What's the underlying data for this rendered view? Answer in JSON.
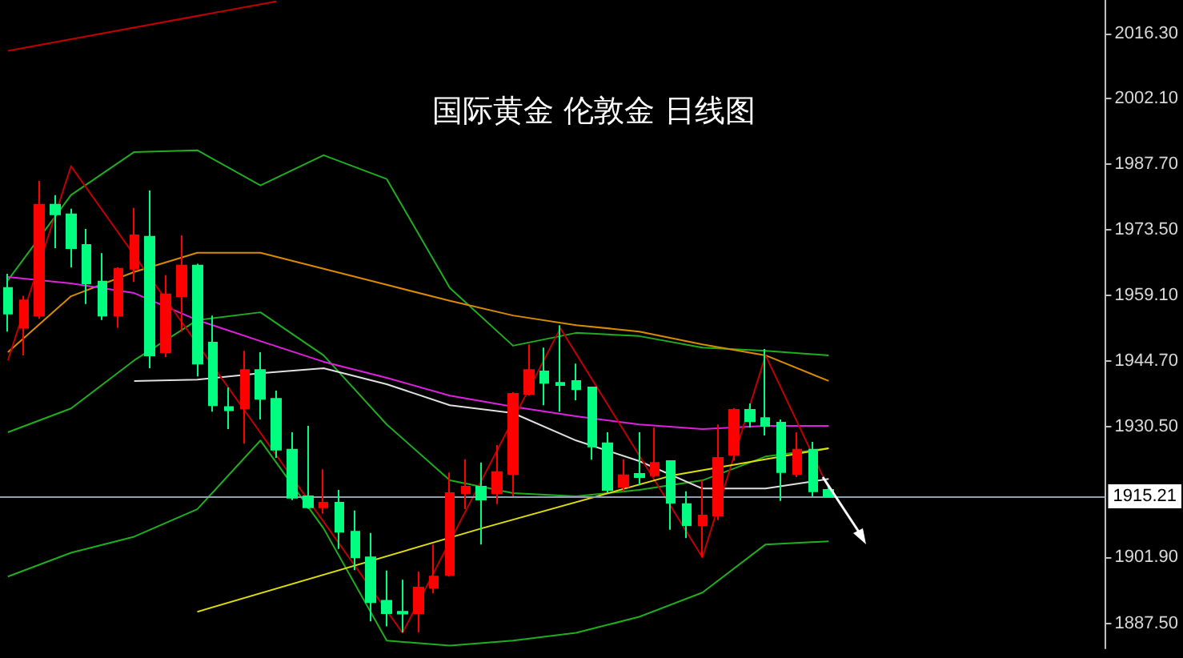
{
  "chart_data": {
    "type": "candlestick",
    "title": "国际黄金 伦敦金 日线图",
    "categories": [
      null,
      null,
      null,
      null,
      null,
      null,
      null,
      null,
      null,
      null,
      null,
      null,
      null,
      null,
      null,
      null,
      null,
      null,
      null,
      null,
      null,
      null,
      null,
      null,
      null,
      null,
      null,
      null,
      null,
      null,
      null,
      null,
      null,
      null,
      null,
      null,
      null,
      null,
      null,
      null,
      null,
      null,
      null,
      null,
      null,
      null,
      null,
      null,
      null,
      null,
      null,
      null,
      null,
      null,
      null,
      null,
      null,
      null,
      null,
      null,
      null,
      null,
      null,
      null,
      null,
      null,
      null,
      null,
      null,
      null
    ],
    "ohlc": [
      [
        1960.7,
        1963.8,
        1951.2,
        1955.1
      ],
      [
        1952.0,
        1959.0,
        1946.0,
        1958.0
      ],
      [
        1954.7,
        1984.1,
        1954.0,
        1978.9
      ],
      [
        1978.9,
        1981.0,
        1969.4,
        1976.8
      ],
      [
        1976.8,
        1978.0,
        1965.2,
        1969.4
      ],
      [
        1970.1,
        1973.6,
        1957.2,
        1961.7
      ],
      [
        1962.1,
        1968.3,
        1953.7,
        1954.7
      ],
      [
        1954.7,
        1965.2,
        1952.0,
        1964.9
      ],
      [
        1964.9,
        1978.2,
        1962.0,
        1972.2
      ],
      [
        1971.9,
        1982.0,
        1943.2,
        1946.0
      ],
      [
        1946.7,
        1963.5,
        1945.6,
        1959.3
      ],
      [
        1958.9,
        1972.2,
        1951.2,
        1965.6
      ],
      [
        1965.6,
        1966.0,
        1941.4,
        1944.2
      ],
      [
        1948.8,
        1954.7,
        1933.7,
        1935.1
      ],
      [
        1934.7,
        1939.0,
        1929.9,
        1934.0
      ],
      [
        1934.4,
        1947.0,
        1926.7,
        1942.8
      ],
      [
        1942.8,
        1946.7,
        1932.0,
        1936.5
      ],
      [
        1936.5,
        1938.3,
        1923.6,
        1925.4
      ],
      [
        1925.4,
        1929.2,
        1914.4,
        1914.9
      ],
      [
        1915.2,
        1930.6,
        1912.5,
        1912.8
      ],
      [
        1912.8,
        1921.1,
        1911.4,
        1913.8
      ],
      [
        1913.8,
        1916.6,
        1903.7,
        1907.5
      ],
      [
        1907.5,
        1912.1,
        1899.1,
        1901.9
      ],
      [
        1901.9,
        1907.2,
        1887.9,
        1892.1
      ],
      [
        1892.4,
        1899.0,
        1886.8,
        1889.7
      ],
      [
        1890.0,
        1897.0,
        1885.5,
        1889.6
      ],
      [
        1889.7,
        1898.8,
        1885.5,
        1895.3
      ],
      [
        1895.3,
        1904.7,
        1894.0,
        1897.7
      ],
      [
        1898.1,
        1920.4,
        1897.7,
        1915.9
      ],
      [
        1915.9,
        1923.3,
        1912.4,
        1917.3
      ],
      [
        1917.3,
        1922.6,
        1904.7,
        1914.5
      ],
      [
        1915.9,
        1926.4,
        1913.5,
        1920.5
      ],
      [
        1920.1,
        1938.0,
        1915.2,
        1937.6
      ],
      [
        1937.6,
        1948.4,
        1937.2,
        1942.8
      ],
      [
        1942.5,
        1947.7,
        1935.1,
        1940.0
      ],
      [
        1940.0,
        1952.6,
        1933.7,
        1939.5
      ],
      [
        1940.4,
        1944.2,
        1936.2,
        1938.6
      ],
      [
        1939.0,
        1939.0,
        1923.2,
        1926.1
      ],
      [
        1926.8,
        1929.2,
        1915.9,
        1916.6
      ],
      [
        1917.3,
        1923.3,
        1916.2,
        1919.8
      ],
      [
        1920.1,
        1929.2,
        1917.6,
        1919.4
      ],
      [
        1919.8,
        1930.2,
        1919.4,
        1922.5
      ],
      [
        1922.9,
        1923.0,
        1907.9,
        1913.8
      ],
      [
        1913.5,
        1916.3,
        1906.1,
        1908.9
      ],
      [
        1908.9,
        1918.7,
        1901.9,
        1911.0
      ],
      [
        1911.0,
        1930.9,
        1910.0,
        1923.6
      ],
      [
        1924.3,
        1934.5,
        1923.0,
        1934.1
      ],
      [
        1934.1,
        1935.5,
        1930.2,
        1931.6
      ],
      [
        1932.3,
        1947.4,
        1928.5,
        1930.6
      ],
      [
        1931.3,
        1932.0,
        1914.2,
        1920.5
      ],
      [
        1920.1,
        1929.2,
        1919.4,
        1925.4
      ],
      [
        1925.4,
        1927.1,
        1915.2,
        1916.3
      ],
      [
        1916.6,
        1917.3,
        1915.2,
        1915.2
      ],
      null,
      null,
      null,
      null,
      null,
      null,
      null,
      null,
      null,
      null,
      null,
      null,
      null,
      null,
      null,
      null,
      null
    ],
    "colors": [
      "#00ff80",
      "#ff0000",
      "#ff0000",
      "#00ff80",
      "#00ff80",
      "#00ff80",
      "#00ff80",
      "#ff0000",
      "#ff0000",
      "#00ff80",
      "#ff0000",
      "#ff0000",
      "#00ff80",
      "#00ff80",
      "#00ff80",
      "#ff0000",
      "#00ff80",
      "#00ff80",
      "#00ff80",
      "#00ff80",
      "#ff0000",
      "#00ff80",
      "#00ff80",
      "#00ff80",
      "#00ff80",
      "#00ff80",
      "#ff0000",
      "#ff0000",
      "#ff0000",
      "#ff0000",
      "#00ff80",
      "#ff0000",
      "#ff0000",
      "#ff0000",
      "#00ff80",
      "#00ff80",
      "#00ff80",
      "#00ff80",
      "#00ff80",
      "#ff0000",
      "#00ff80",
      "#ff0000",
      "#00ff80",
      "#00ff80",
      "#ff0000",
      "#ff0000",
      "#ff0000",
      "#00ff80",
      "#00ff80",
      "#00ff80",
      "#ff0000",
      "#00ff80",
      "#00ff80",
      null,
      null,
      null,
      null,
      null,
      null,
      null,
      null,
      null,
      null,
      null,
      null,
      null,
      null,
      null,
      null,
      null
    ],
    "series": [
      {
        "type": "line",
        "color": "#1fae1f",
        "values": [
          1962.4,
          null,
          null,
          null,
          1981.0,
          null,
          null,
          null,
          1990.4,
          null,
          null,
          null,
          1990.8,
          null,
          null,
          null,
          1983.1,
          null,
          null,
          null,
          1989.7,
          null,
          null,
          null,
          1984.5,
          null,
          null,
          null,
          1960.7,
          null,
          null,
          null,
          1948.1,
          null,
          null,
          null,
          1950.9,
          null,
          null,
          null,
          1950.2,
          null,
          null,
          null,
          1947.7,
          null,
          null,
          null,
          1947.0,
          null,
          null,
          null,
          1946.0,
          null,
          null,
          null,
          null,
          null,
          null,
          null,
          null,
          null,
          null,
          null,
          null,
          null,
          null,
          null,
          null,
          null
        ]
      },
      {
        "type": "line",
        "color": "#1fae1f",
        "values": [
          1929.2,
          null,
          null,
          null,
          1934.4,
          null,
          null,
          null,
          1944.9,
          null,
          null,
          null,
          1953.7,
          null,
          null,
          null,
          1955.4,
          null,
          null,
          null,
          1946.0,
          null,
          null,
          null,
          1930.9,
          null,
          null,
          null,
          1918.7,
          null,
          null,
          null,
          1915.9,
          null,
          null,
          null,
          1915.2,
          null,
          null,
          null,
          1916.6,
          null,
          null,
          null,
          1918.7,
          null,
          null,
          null,
          1923.9,
          null,
          null,
          null,
          1925.7,
          null,
          null,
          null,
          null,
          null,
          null,
          null,
          null,
          null,
          null,
          null,
          null,
          null,
          null,
          null,
          null,
          null
        ]
      },
      {
        "type": "line",
        "color": "#1fae1f",
        "values": [
          1897.7,
          null,
          null,
          null,
          1902.9,
          null,
          null,
          null,
          1906.4,
          null,
          null,
          null,
          1912.4,
          null,
          null,
          null,
          1927.4,
          null,
          null,
          null,
          1908.2,
          null,
          null,
          null,
          1883.7,
          null,
          null,
          null,
          1882.6,
          null,
          null,
          null,
          1883.7,
          null,
          null,
          null,
          1885.4,
          null,
          null,
          null,
          1888.9,
          null,
          null,
          null,
          1894.2,
          null,
          null,
          null,
          1904.7,
          null,
          null,
          null,
          1905.4,
          null,
          null,
          null,
          null,
          null,
          null,
          null,
          null,
          null,
          null,
          null,
          null,
          null,
          null,
          null,
          null,
          null
        ]
      },
      {
        "type": "line",
        "color": "#d98c00",
        "values": [
          1946.7,
          null,
          null,
          null,
          1958.9,
          null,
          null,
          null,
          1964.2,
          null,
          null,
          null,
          1968.4,
          null,
          null,
          null,
          1968.4,
          null,
          null,
          null,
          1964.9,
          null,
          null,
          null,
          1961.4,
          null,
          null,
          null,
          1957.9,
          null,
          null,
          null,
          1954.7,
          null,
          null,
          null,
          1952.6,
          null,
          null,
          null,
          1951.2,
          null,
          null,
          null,
          1948.4,
          null,
          null,
          null,
          1946.0,
          null,
          null,
          null,
          1940.4,
          null,
          null,
          null,
          null,
          null,
          null,
          null,
          null,
          null,
          null,
          null,
          null,
          null,
          null,
          null,
          null,
          null
        ]
      },
      {
        "type": "line",
        "color": "#e020e0",
        "values": [
          1963.1,
          null,
          null,
          null,
          1961.7,
          null,
          null,
          null,
          1959.6,
          null,
          null,
          null,
          1953.7,
          null,
          null,
          null,
          1949.1,
          null,
          null,
          null,
          1944.6,
          null,
          null,
          null,
          1941.1,
          null,
          null,
          null,
          1937.2,
          null,
          null,
          null,
          1934.8,
          null,
          null,
          null,
          1932.7,
          null,
          null,
          null,
          1930.9,
          null,
          null,
          null,
          1929.9,
          null,
          null,
          null,
          1930.6,
          null,
          null,
          null,
          1930.6,
          null,
          null,
          null,
          null,
          null,
          null,
          null,
          null,
          null,
          null,
          null,
          null,
          null,
          null,
          null,
          null,
          null
        ]
      },
      {
        "type": "line",
        "color": "#e0e0e0",
        "values": [
          null,
          null,
          null,
          null,
          null,
          null,
          null,
          null,
          1940.4,
          null,
          null,
          null,
          1940.7,
          null,
          null,
          null,
          1942.1,
          null,
          null,
          null,
          1943.2,
          null,
          null,
          null,
          1939.7,
          null,
          null,
          null,
          1935.1,
          null,
          null,
          null,
          1933.4,
          null,
          null,
          null,
          1927.4,
          null,
          null,
          null,
          1922.9,
          null,
          null,
          null,
          1916.9,
          null,
          null,
          null,
          1916.9,
          null,
          null,
          null,
          1919.0,
          null,
          null,
          null,
          null,
          null,
          null,
          null,
          null,
          null,
          null,
          null,
          null,
          null,
          null,
          null,
          null,
          null
        ]
      },
      {
        "type": "line",
        "color": "#c00000",
        "values": [
          1944.9,
          null,
          null,
          null,
          1987.3,
          null,
          null,
          null,
          null,
          null,
          null,
          null,
          null,
          null,
          null,
          null,
          null,
          null,
          null,
          null,
          null,
          null,
          null,
          null,
          null,
          1885.4,
          null,
          null,
          null,
          null,
          null,
          null,
          null,
          null,
          null,
          1951.9,
          null,
          null,
          null,
          null,
          null,
          null,
          null,
          null,
          1901.9,
          null,
          null,
          null,
          1946.0,
          null,
          null,
          null,
          1916.9,
          null,
          null,
          null,
          null,
          null,
          null,
          null,
          null,
          null,
          null,
          null,
          null,
          null,
          null,
          null,
          null,
          null
        ]
      },
      {
        "type": "line",
        "color": "#e0e000",
        "values": [
          null,
          null,
          null,
          null,
          null,
          null,
          null,
          null,
          null,
          null,
          null,
          null,
          1890.0,
          null,
          null,
          null,
          null,
          null,
          null,
          null,
          null,
          null,
          null,
          null,
          null,
          null,
          null,
          null,
          null,
          null,
          1908.2,
          null,
          null,
          null,
          null,
          null,
          null,
          null,
          null,
          null,
          null,
          null,
          1919.7,
          null,
          null,
          null,
          null,
          null,
          null,
          null,
          null,
          null,
          1925.7,
          null,
          null,
          null,
          null,
          null,
          null,
          null,
          null,
          null,
          null,
          null,
          null,
          null,
          null,
          null,
          null,
          null
        ]
      },
      {
        "type": "line",
        "color": "#c00000",
        "values": [
          2012.5,
          null,
          null,
          null,
          null,
          null,
          null,
          null,
          null,
          null,
          null,
          null,
          null,
          null,
          null,
          null,
          null,
          2023.3,
          null,
          null,
          null,
          null,
          null,
          null,
          null,
          null,
          null,
          null,
          null,
          null,
          null,
          null,
          null,
          null,
          null,
          null,
          null,
          null,
          null,
          null,
          null,
          null,
          null,
          null,
          null,
          null,
          null,
          null,
          null,
          null,
          null,
          null,
          null,
          null,
          null,
          null,
          null,
          null,
          null,
          null,
          null,
          null,
          null,
          null,
          null,
          null,
          null,
          null,
          null,
          null
        ]
      }
    ],
    "ylim": [
      1882,
      2023.6
    ],
    "yticks": [
      {
        "value": 2016.3,
        "label": "2016.30"
      },
      {
        "value": 2002.1,
        "label": "2002.10"
      },
      {
        "value": 1987.7,
        "label": "1987.70"
      },
      {
        "value": 1973.5,
        "label": "1973.50"
      },
      {
        "value": 1959.1,
        "label": "1959.10"
      },
      {
        "value": 1944.7,
        "label": "1944.70"
      },
      {
        "value": 1930.5,
        "label": "1930.50"
      },
      {
        "value": 1901.9,
        "label": "1901.90"
      },
      {
        "value": 1887.5,
        "label": "1887.50"
      }
    ],
    "ref_lines": [
      {
        "axis": "y",
        "value": 1915.21,
        "label": "1915.21",
        "color": "#8fa0b0"
      }
    ]
  }
}
